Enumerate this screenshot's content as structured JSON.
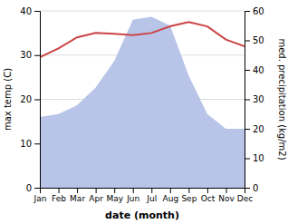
{
  "chart_data": {
    "type": "line",
    "x_label": "date (month)",
    "y_label": "max temp (C)",
    "y2_label": "med. precipitation (kg/m2)",
    "categories": [
      "Jan",
      "Feb",
      "Mar",
      "Apr",
      "May",
      "Jun",
      "Jul",
      "Aug",
      "Sep",
      "Oct",
      "Nov",
      "Dec"
    ],
    "series": [
      {
        "type": "area",
        "axis": "y2",
        "color": "#b8c4e8",
        "values": [
          24,
          25,
          28,
          34,
          43,
          57,
          58,
          55,
          38,
          25,
          20,
          20
        ]
      },
      {
        "type": "line",
        "color": "#cc4444",
        "values": [
          29.5,
          31.5,
          34.0,
          35.0,
          34.8,
          34.5,
          35.0,
          36.5,
          37.5,
          36.5,
          33.5,
          32.0
        ]
      }
    ],
    "ylim": [
      0,
      40
    ],
    "yticks": [
      0,
      10,
      20,
      30,
      40
    ],
    "y2lim": [
      0,
      60
    ],
    "y2ticks": [
      0,
      10,
      20,
      30,
      40,
      50,
      60
    ],
    "grid": true
  }
}
